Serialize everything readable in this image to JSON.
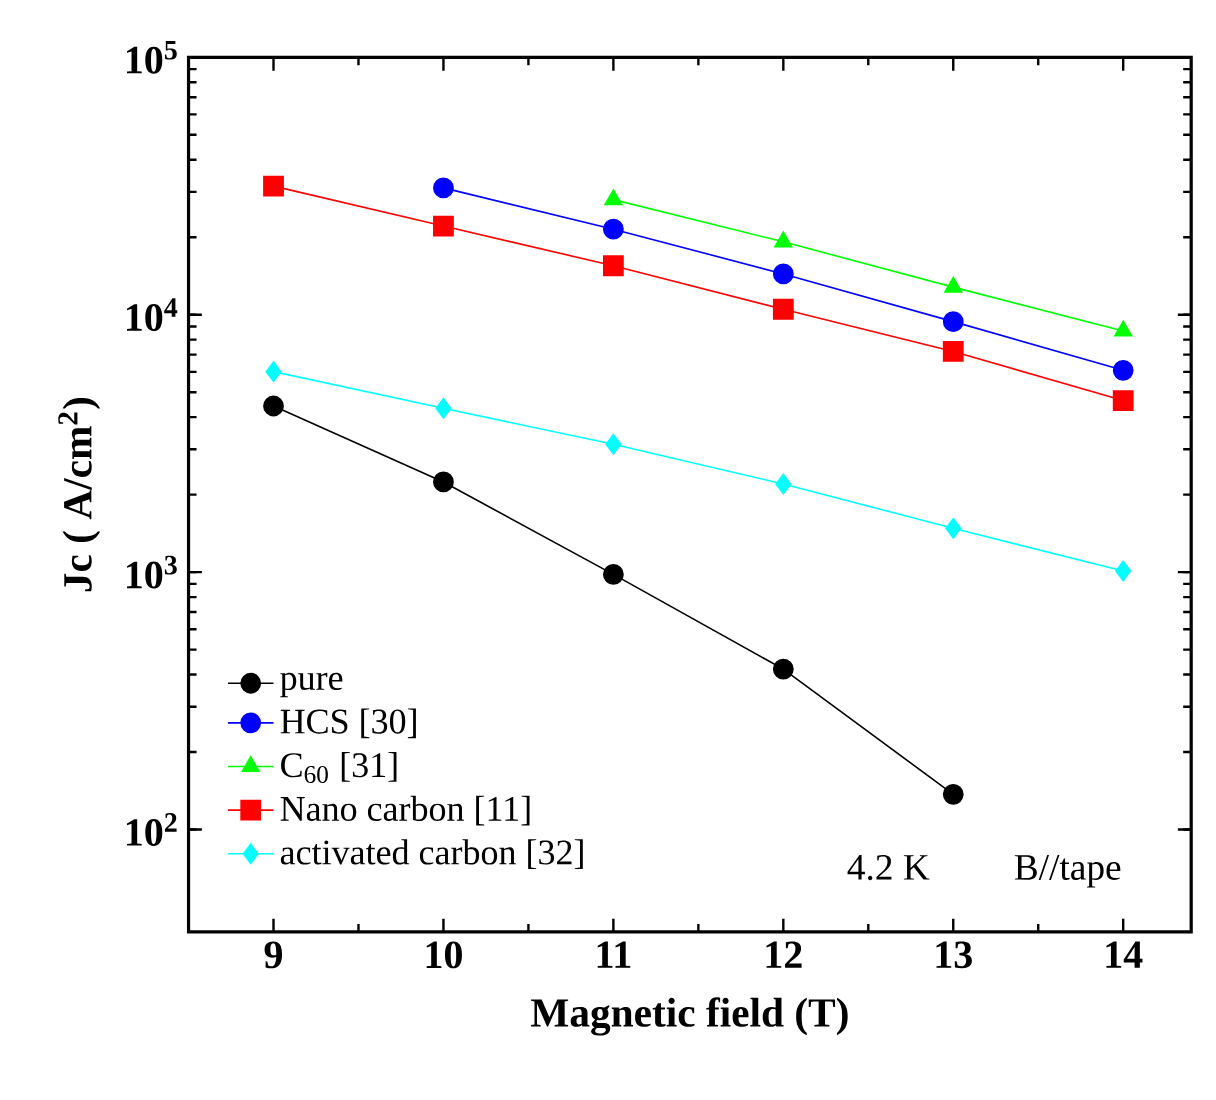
{
  "chart_data": {
    "type": "line",
    "xlabel": "Magnetic field (T)",
    "ylabel": "Jc ( A/cm$^{2}$)",
    "x": [
      9,
      10,
      11,
      12,
      13,
      14
    ],
    "xlim": [
      8.5,
      14.4
    ],
    "xticks": [
      9,
      10,
      11,
      12,
      13,
      14
    ],
    "ylim": [
      40,
      100000
    ],
    "log": "y",
    "yticks": [
      {
        "value": 100,
        "label": "10$^{2}$"
      },
      {
        "value": 1000,
        "label": "10$^{3}$"
      },
      {
        "value": 10000,
        "label": "10$^{4}$"
      },
      {
        "value": 100000,
        "label": "10$^{5}$"
      }
    ],
    "legend": "bottom left",
    "grid": false,
    "series": [
      {
        "name": "pure",
        "color": "#000000",
        "marker": "circle",
        "values": [
          4420,
          2240,
          980,
          420,
          137,
          null
        ]
      },
      {
        "name": "HCS [30]",
        "color": "#0000ff",
        "marker": "circle",
        "values": [
          null,
          31100,
          21500,
          14400,
          9400,
          6080
        ]
      },
      {
        "name": "C$_{60}$ [31]",
        "color": "#00ff00",
        "marker": "triangle",
        "values": [
          null,
          null,
          28000,
          19200,
          12800,
          8650
        ]
      },
      {
        "name": "Nano carbon [11]",
        "color": "#ff0000",
        "marker": "square",
        "values": [
          31600,
          22100,
          15500,
          10500,
          7200,
          4640
        ]
      },
      {
        "name": "activated carbon [32]",
        "color": "#00ffff",
        "marker": "diamond",
        "values": [
          6010,
          4330,
          3140,
          2200,
          1480,
          1010
        ]
      }
    ],
    "annotations": [
      "4.2 K",
      "B//tape"
    ]
  }
}
